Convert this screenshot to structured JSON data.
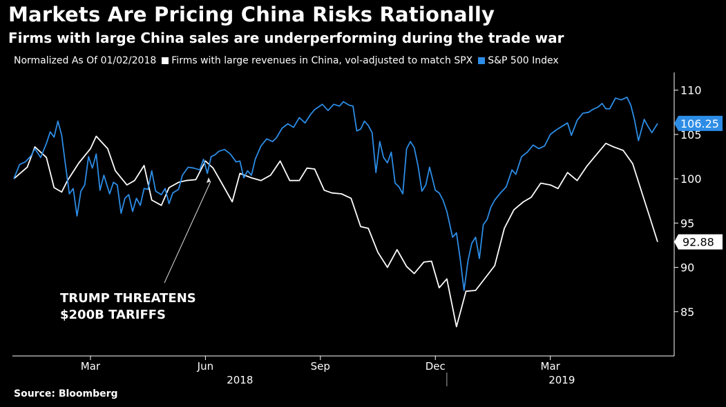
{
  "title": "Markets Are Pricing China Risks Rationally",
  "subtitle": "Firms with large China sales are underperforming during the trade war",
  "source": "Source: Bloomberg",
  "colors": {
    "china": "#ffffff",
    "spx": "#2d8de6",
    "background": "#000000",
    "axis": "#ffffff"
  },
  "chart_data": {
    "type": "line",
    "title": "Markets Are Pricing China Risks Rationally",
    "note": "Normalized As Of 01/02/2018",
    "ylim": [
      80,
      112
    ],
    "yticks": [
      85,
      90,
      95,
      100,
      105,
      110
    ],
    "xlim": [
      0,
      16.8
    ],
    "month_ticks": [
      {
        "label": "Mar",
        "x": 2
      },
      {
        "label": "Jun",
        "x": 5
      },
      {
        "label": "Sep",
        "x": 8
      },
      {
        "label": "Dec",
        "x": 11
      },
      {
        "label": "Mar",
        "x": 14
      }
    ],
    "year_labels": [
      {
        "label": "2018",
        "x": 5.9
      },
      {
        "label": "2019",
        "x": 14.3
      }
    ],
    "year_divider_x": 11.3,
    "series": [
      {
        "name": "Firms with large revenues in China, vol-adjusted to match SPX",
        "color": "#ffffff",
        "last_value": "92.88",
        "points": [
          [
            0,
            100
          ],
          [
            0.35,
            101.3
          ],
          [
            0.55,
            103.6
          ],
          [
            0.85,
            102.4
          ],
          [
            1.05,
            99.0
          ],
          [
            1.25,
            98.5
          ],
          [
            1.4,
            99.8
          ],
          [
            1.7,
            101.8
          ],
          [
            2.0,
            103.4
          ],
          [
            2.15,
            104.8
          ],
          [
            2.45,
            103.4
          ],
          [
            2.65,
            100.9
          ],
          [
            2.95,
            99.3
          ],
          [
            3.15,
            99.8
          ],
          [
            3.4,
            101.5
          ],
          [
            3.6,
            97.6
          ],
          [
            3.85,
            97.0
          ],
          [
            4.05,
            99.0
          ],
          [
            4.3,
            99.6
          ],
          [
            4.5,
            99.8
          ],
          [
            4.75,
            99.9
          ],
          [
            5.0,
            102.0
          ],
          [
            5.2,
            101.2
          ],
          [
            5.4,
            99.7
          ],
          [
            5.7,
            97.4
          ],
          [
            5.9,
            100.6
          ],
          [
            6.2,
            100.1
          ],
          [
            6.45,
            99.8
          ],
          [
            6.7,
            100.4
          ],
          [
            6.95,
            102.0
          ],
          [
            7.2,
            99.8
          ],
          [
            7.45,
            99.8
          ],
          [
            7.65,
            101.2
          ],
          [
            7.85,
            101.1
          ],
          [
            8.1,
            98.7
          ],
          [
            8.3,
            98.4
          ],
          [
            8.55,
            98.3
          ],
          [
            8.8,
            97.8
          ],
          [
            9.05,
            94.6
          ],
          [
            9.25,
            94.4
          ],
          [
            9.5,
            91.7
          ],
          [
            9.75,
            90.0
          ],
          [
            10.0,
            92.0
          ],
          [
            10.25,
            90.1
          ],
          [
            10.45,
            89.3
          ],
          [
            10.7,
            90.6
          ],
          [
            10.9,
            90.7
          ],
          [
            11.1,
            87.7
          ],
          [
            11.3,
            88.7
          ],
          [
            11.55,
            83.3
          ],
          [
            11.8,
            87.3
          ],
          [
            12.05,
            87.4
          ],
          [
            12.3,
            88.8
          ],
          [
            12.55,
            90.2
          ],
          [
            12.8,
            94.4
          ],
          [
            13.05,
            96.5
          ],
          [
            13.3,
            97.4
          ],
          [
            13.5,
            97.9
          ],
          [
            13.75,
            99.5
          ],
          [
            14.0,
            99.3
          ],
          [
            14.2,
            98.9
          ],
          [
            14.45,
            100.7
          ],
          [
            14.7,
            99.8
          ],
          [
            14.95,
            101.4
          ],
          [
            15.2,
            102.7
          ],
          [
            15.45,
            104.0
          ],
          [
            15.65,
            103.6
          ],
          [
            15.9,
            103.2
          ],
          [
            16.15,
            101.7
          ],
          [
            16.4,
            98.3
          ],
          [
            16.6,
            95.6
          ],
          [
            16.8,
            92.88
          ]
        ]
      },
      {
        "name": "S&P 500 Index",
        "color": "#2d8de6",
        "last_value": "106.25",
        "points": [
          [
            0,
            100
          ],
          [
            0.15,
            101.6
          ],
          [
            0.3,
            101.9
          ],
          [
            0.45,
            102.6
          ],
          [
            0.55,
            103.4
          ],
          [
            0.7,
            102.4
          ],
          [
            0.85,
            104.0
          ],
          [
            0.95,
            105.3
          ],
          [
            1.05,
            104.7
          ],
          [
            1.15,
            106.5
          ],
          [
            1.25,
            104.9
          ],
          [
            1.35,
            101.5
          ],
          [
            1.45,
            98.3
          ],
          [
            1.55,
            98.9
          ],
          [
            1.65,
            95.8
          ],
          [
            1.75,
            98.6
          ],
          [
            1.85,
            99.3
          ],
          [
            1.95,
            102.5
          ],
          [
            2.05,
            101.2
          ],
          [
            2.15,
            102.8
          ],
          [
            2.25,
            98.7
          ],
          [
            2.35,
            100.4
          ],
          [
            2.5,
            98.3
          ],
          [
            2.6,
            99.6
          ],
          [
            2.7,
            99.3
          ],
          [
            2.8,
            96.1
          ],
          [
            2.9,
            97.8
          ],
          [
            3.0,
            98.2
          ],
          [
            3.1,
            96.3
          ],
          [
            3.2,
            97.8
          ],
          [
            3.3,
            97.0
          ],
          [
            3.4,
            98.9
          ],
          [
            3.5,
            98.8
          ],
          [
            3.6,
            100.9
          ],
          [
            3.7,
            98.6
          ],
          [
            3.85,
            98.2
          ],
          [
            3.95,
            98.9
          ],
          [
            4.05,
            97.2
          ],
          [
            4.15,
            98.4
          ],
          [
            4.3,
            98.8
          ],
          [
            4.4,
            100.4
          ],
          [
            4.55,
            101.3
          ],
          [
            4.7,
            101.2
          ],
          [
            4.85,
            101.0
          ],
          [
            4.95,
            102.2
          ],
          [
            5.05,
            100.6
          ],
          [
            5.15,
            102.5
          ],
          [
            5.25,
            102.7
          ],
          [
            5.35,
            103.1
          ],
          [
            5.5,
            103.3
          ],
          [
            5.65,
            102.8
          ],
          [
            5.8,
            101.9
          ],
          [
            5.9,
            102.0
          ],
          [
            6.0,
            100.1
          ],
          [
            6.1,
            100.9
          ],
          [
            6.2,
            100.4
          ],
          [
            6.3,
            102.2
          ],
          [
            6.45,
            103.7
          ],
          [
            6.6,
            104.5
          ],
          [
            6.75,
            104.2
          ],
          [
            6.85,
            104.6
          ],
          [
            7.0,
            105.7
          ],
          [
            7.15,
            106.2
          ],
          [
            7.3,
            105.8
          ],
          [
            7.45,
            106.9
          ],
          [
            7.6,
            106.3
          ],
          [
            7.75,
            107.3
          ],
          [
            7.85,
            107.8
          ],
          [
            7.95,
            108.1
          ],
          [
            8.05,
            108.4
          ],
          [
            8.2,
            107.7
          ],
          [
            8.35,
            108.4
          ],
          [
            8.5,
            108.2
          ],
          [
            8.6,
            108.7
          ],
          [
            8.75,
            108.3
          ],
          [
            8.85,
            108.2
          ],
          [
            8.95,
            105.4
          ],
          [
            9.05,
            105.6
          ],
          [
            9.15,
            106.5
          ],
          [
            9.25,
            106.0
          ],
          [
            9.35,
            105.2
          ],
          [
            9.45,
            100.7
          ],
          [
            9.55,
            104.2
          ],
          [
            9.65,
            102.4
          ],
          [
            9.75,
            101.8
          ],
          [
            9.85,
            103.0
          ],
          [
            9.95,
            99.5
          ],
          [
            10.05,
            99.1
          ],
          [
            10.15,
            98.3
          ],
          [
            10.25,
            103.4
          ],
          [
            10.35,
            104.2
          ],
          [
            10.45,
            103.5
          ],
          [
            10.55,
            101.4
          ],
          [
            10.65,
            98.6
          ],
          [
            10.75,
            99.3
          ],
          [
            10.85,
            101.3
          ],
          [
            11.0,
            98.7
          ],
          [
            11.1,
            98.4
          ],
          [
            11.2,
            97.6
          ],
          [
            11.3,
            96.3
          ],
          [
            11.45,
            93.4
          ],
          [
            11.55,
            93.9
          ],
          [
            11.65,
            90.9
          ],
          [
            11.75,
            87.4
          ],
          [
            11.85,
            90.7
          ],
          [
            11.95,
            92.7
          ],
          [
            12.05,
            93.4
          ],
          [
            12.15,
            91.0
          ],
          [
            12.25,
            94.8
          ],
          [
            12.35,
            95.4
          ],
          [
            12.45,
            96.8
          ],
          [
            12.55,
            97.6
          ],
          [
            12.7,
            98.4
          ],
          [
            12.85,
            99.1
          ],
          [
            13.0,
            101.0
          ],
          [
            13.1,
            100.5
          ],
          [
            13.25,
            102.5
          ],
          [
            13.4,
            103.0
          ],
          [
            13.55,
            103.8
          ],
          [
            13.7,
            103.4
          ],
          [
            13.85,
            103.7
          ],
          [
            14.0,
            105.0
          ],
          [
            14.15,
            105.5
          ],
          [
            14.3,
            105.9
          ],
          [
            14.45,
            106.3
          ],
          [
            14.55,
            104.9
          ],
          [
            14.7,
            106.6
          ],
          [
            14.85,
            107.4
          ],
          [
            15.0,
            107.5
          ],
          [
            15.1,
            107.8
          ],
          [
            15.25,
            108.1
          ],
          [
            15.35,
            108.5
          ],
          [
            15.45,
            107.9
          ],
          [
            15.55,
            107.9
          ],
          [
            15.7,
            109.1
          ],
          [
            15.85,
            108.9
          ],
          [
            16.0,
            109.2
          ],
          [
            16.1,
            108.3
          ],
          [
            16.2,
            106.6
          ],
          [
            16.3,
            104.3
          ],
          [
            16.45,
            106.7
          ],
          [
            16.55,
            105.9
          ],
          [
            16.65,
            105.2
          ],
          [
            16.8,
            106.25
          ]
        ]
      }
    ],
    "annotation": {
      "lines": [
        "TRUMP THREATENS",
        "$200B TARIFFS"
      ],
      "target": [
        5.1,
        100.0
      ]
    }
  }
}
